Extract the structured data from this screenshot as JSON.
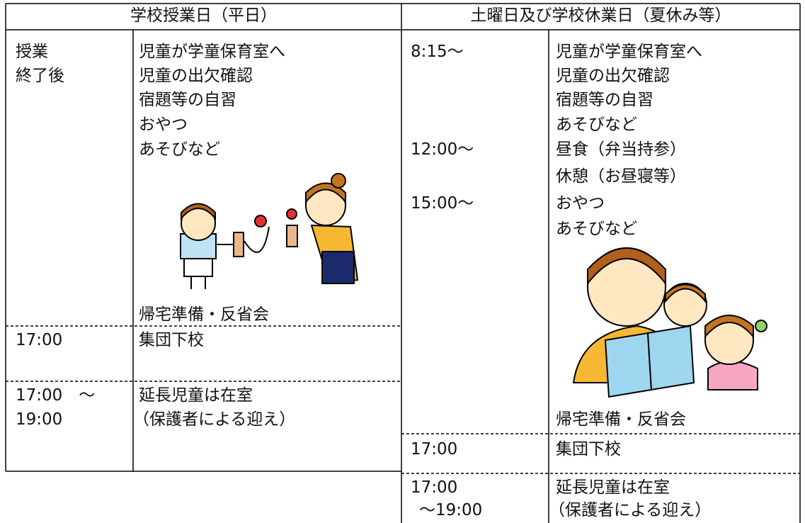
{
  "left": {
    "header": "学校授業日（平日）",
    "rows": [
      {
        "time": [
          "授業",
          "終了後"
        ],
        "content": [
          "児童が学童保育室へ",
          "児童の出欠確認",
          "宿題等の自習",
          "おやつ",
          "あそびなど",
          "帰宅準備・反省会"
        ]
      },
      {
        "time": [
          "17:00"
        ],
        "content": [
          "集団下校"
        ]
      },
      {
        "time": [
          "17:00　～",
          "19:00"
        ],
        "content": [
          "延長児童は在室",
          "（保護者による迎え）"
        ]
      }
    ]
  },
  "right": {
    "header": "土曜日及び学校休業日（夏休み等）",
    "rows": [
      {
        "time": [
          "8:15～",
          "12:00～",
          "15:00～"
        ],
        "content": [
          "児童が学童保育室へ",
          "児童の出欠確認",
          "宿題等の自習",
          "あそびなど",
          "昼食（弁当持参）",
          "休憩（お昼寝等）",
          "おやつ",
          "あそびなど",
          "帰宅準備・反省会"
        ]
      },
      {
        "time": [
          "17:00"
        ],
        "content": [
          "集団下校"
        ]
      },
      {
        "time": [
          "17:00",
          "～19:00"
        ],
        "content": [
          "延長児童は在室",
          "（保護者による迎え）"
        ]
      }
    ]
  }
}
